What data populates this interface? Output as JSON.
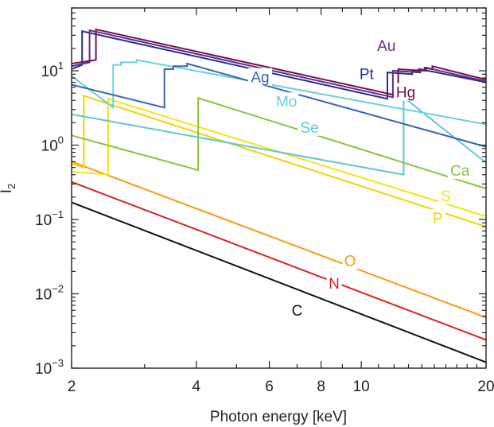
{
  "chart_data": {
    "type": "line",
    "xlabel": "Photon energy [keV]",
    "ylabel": "I",
    "ylabel_subscript": "2",
    "x_scale": "log",
    "y_scale": "log",
    "xlim": [
      2,
      20
    ],
    "ylim": [
      0.001,
      70
    ],
    "x_ticks": [
      {
        "value": 2,
        "label": "2"
      },
      {
        "value": 4,
        "label": "4"
      },
      {
        "value": 6,
        "label": "6"
      },
      {
        "value": 8,
        "label": "8"
      },
      {
        "value": 10,
        "label": "10"
      },
      {
        "value": 20,
        "label": "20"
      }
    ],
    "y_ticks": [
      {
        "value": 0.001,
        "base": "10",
        "exp": "−3"
      },
      {
        "value": 0.01,
        "base": "10",
        "exp": "−2"
      },
      {
        "value": 0.1,
        "base": "10",
        "exp": "−1"
      },
      {
        "value": 1,
        "base": "10",
        "exp": "0"
      },
      {
        "value": 10,
        "base": "10",
        "exp": "1"
      }
    ],
    "grid": false,
    "series": [
      {
        "name": "C",
        "color": "#111111",
        "points": [
          [
            2,
            0.17
          ],
          [
            20,
            0.0012
          ]
        ],
        "label_pos": [
          7.0,
          0.006
        ]
      },
      {
        "name": "N",
        "color": "#dd2222",
        "points": [
          [
            2,
            0.32
          ],
          [
            20,
            0.0024
          ]
        ],
        "label_pos": [
          8.6,
          0.014
        ]
      },
      {
        "name": "O",
        "color": "#f39c12",
        "points": [
          [
            2,
            0.6
          ],
          [
            20,
            0.0048
          ]
        ],
        "label_pos": [
          9.4,
          0.028
        ]
      },
      {
        "name": "P",
        "color": "#f2d20a",
        "points": [
          [
            2,
            0.56
          ],
          [
            2.14,
            0.5
          ],
          [
            2.14,
            4.6
          ],
          [
            20,
            0.08
          ]
        ],
        "label_pos": [
          15.3,
          0.105
        ]
      },
      {
        "name": "S",
        "color": "#f5e31a",
        "points": [
          [
            2,
            0.44
          ],
          [
            2.45,
            0.4
          ],
          [
            2.45,
            4.2
          ],
          [
            20,
            0.11
          ]
        ],
        "label_pos": [
          16.0,
          0.21
        ]
      },
      {
        "name": "Ca",
        "color": "#8ac43e",
        "points": [
          [
            2,
            1.35
          ],
          [
            4.04,
            0.46
          ],
          [
            4.04,
            4.3
          ],
          [
            20,
            0.26
          ]
        ],
        "label_pos": [
          17.3,
          0.46
        ]
      },
      {
        "name": "Se",
        "color": "#5ec7d3",
        "points": [
          [
            2,
            2.6
          ],
          [
            12.65,
            0.4
          ],
          [
            12.65,
            4.4
          ],
          [
            20,
            0.58
          ]
        ],
        "label_pos": [
          7.5,
          1.75
        ]
      },
      {
        "name": "Mo",
        "color": "#6acfd8",
        "points": [
          [
            2,
            8.5
          ],
          [
            2.52,
            3.2
          ],
          [
            2.52,
            12.0
          ],
          [
            2.63,
            12.0
          ],
          [
            2.63,
            13.0
          ],
          [
            2.87,
            13.0
          ],
          [
            2.87,
            14.0
          ],
          [
            20,
            1.9
          ]
        ],
        "label_pos": [
          6.6,
          3.9
        ]
      },
      {
        "name": "Ag",
        "color": "#3a63b6",
        "points": [
          [
            2,
            6.5
          ],
          [
            3.35,
            3.2
          ],
          [
            3.35,
            10.5
          ],
          [
            3.52,
            10.5
          ],
          [
            3.52,
            11.5
          ],
          [
            3.8,
            11.5
          ],
          [
            3.8,
            12.5
          ],
          [
            20,
            0.95
          ]
        ],
        "label_pos": [
          5.7,
          8.3
        ]
      },
      {
        "name": "Pt",
        "color": "#26308f",
        "points": [
          [
            2,
            10.5
          ],
          [
            2.12,
            12
          ],
          [
            2.12,
            34
          ],
          [
            11.56,
            4.2
          ],
          [
            11.56,
            9.5
          ],
          [
            13.27,
            9.0
          ],
          [
            13.27,
            10.0
          ],
          [
            13.88,
            9.5
          ],
          [
            13.88,
            10.5
          ],
          [
            20,
            7.0
          ]
        ],
        "label_pos": [
          10.3,
          9.2
        ]
      },
      {
        "name": "Au",
        "color": "#6b2a8a",
        "points": [
          [
            2,
            11.5
          ],
          [
            2.21,
            13
          ],
          [
            2.21,
            35
          ],
          [
            11.92,
            4.4
          ],
          [
            11.92,
            10.0
          ],
          [
            13.73,
            9.5
          ],
          [
            13.73,
            10.5
          ],
          [
            14.35,
            10.0
          ],
          [
            14.35,
            11.0
          ],
          [
            20,
            7.2
          ]
        ],
        "label_pos": [
          11.5,
          22.0
        ]
      },
      {
        "name": "Hg",
        "color": "#6e1550",
        "points": [
          [
            2,
            12.5
          ],
          [
            2.29,
            14
          ],
          [
            2.29,
            36
          ],
          [
            12.28,
            4.6
          ],
          [
            12.28,
            10.5
          ],
          [
            14.21,
            10.0
          ],
          [
            14.21,
            11.0
          ],
          [
            14.84,
            10.5
          ],
          [
            14.84,
            11.5
          ],
          [
            20,
            7.6
          ]
        ],
        "label_pos": [
          12.8,
          5.2
        ]
      }
    ]
  }
}
